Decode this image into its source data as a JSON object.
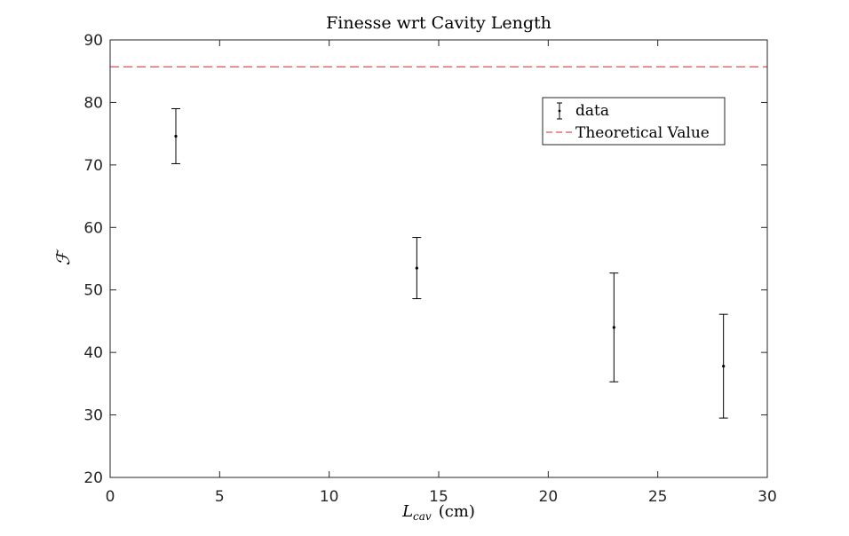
{
  "chart_data": {
    "type": "scatter",
    "title": "Finesse wrt Cavity Length",
    "xlabel_main": "L",
    "xlabel_sub": "cav",
    "xlabel_unit": "(cm)",
    "ylabel": "ℱ",
    "xlim": [
      0,
      30
    ],
    "ylim": [
      20,
      90
    ],
    "xticks": [
      0,
      5,
      10,
      15,
      20,
      25,
      30
    ],
    "yticks": [
      20,
      30,
      40,
      50,
      60,
      70,
      80,
      90
    ],
    "grid": false,
    "legend_position": "top-right",
    "series": [
      {
        "name": "data",
        "kind": "errorbar",
        "color": "#000000",
        "points": [
          {
            "x": 3,
            "y": 74.6,
            "ylow": 70.2,
            "yhigh": 79.0
          },
          {
            "x": 14,
            "y": 53.5,
            "ylow": 48.6,
            "yhigh": 58.4
          },
          {
            "x": 23,
            "y": 44.0,
            "ylow": 35.3,
            "yhigh": 52.7
          },
          {
            "x": 28,
            "y": 37.8,
            "ylow": 29.5,
            "yhigh": 46.1
          }
        ]
      },
      {
        "name": "Theoretical Value",
        "kind": "hline",
        "color": "#d62728",
        "y": 85.7
      }
    ]
  }
}
